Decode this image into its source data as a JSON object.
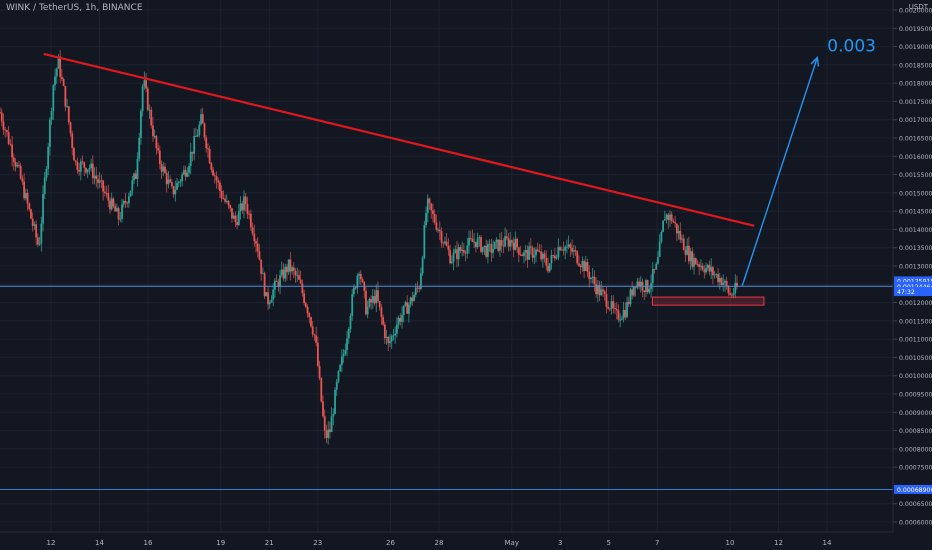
{
  "header": {
    "symbol_title": "WINK / TetherUS, 1h, BINANCE",
    "currency": "USDT"
  },
  "chart_data": {
    "type": "candlestick",
    "y_ticks": [
      "0.00200000",
      "0.00195000",
      "0.00190000",
      "0.00185000",
      "0.00180000",
      "0.00175000",
      "0.00170000",
      "0.00165000",
      "0.00160000",
      "0.00155000",
      "0.00150000",
      "0.00145000",
      "0.00140000",
      "0.00135000",
      "0.00130000",
      "0.00125000",
      "0.00120000",
      "0.00115000",
      "0.00110000",
      "0.00105000",
      "0.00100000",
      "0.00095000",
      "0.00090000",
      "0.00085000",
      "0.00080000",
      "0.00075000",
      "0.00065000",
      "0.00060000"
    ],
    "x_ticks": [
      {
        "label": "12",
        "day": 0
      },
      {
        "label": "14",
        "day": 2
      },
      {
        "label": "16",
        "day": 4
      },
      {
        "label": "19",
        "day": 7
      },
      {
        "label": "21",
        "day": 9
      },
      {
        "label": "23",
        "day": 11
      },
      {
        "label": "26",
        "day": 14
      },
      {
        "label": "28",
        "day": 16
      },
      {
        "label": "May",
        "day": 19
      },
      {
        "label": "3",
        "day": 21
      },
      {
        "label": "5",
        "day": 23
      },
      {
        "label": "7",
        "day": 25
      },
      {
        "label": "10",
        "day": 28
      },
      {
        "label": "12",
        "day": 30
      },
      {
        "label": "14",
        "day": 32
      }
    ],
    "price_labels": [
      {
        "text": "0.00125915",
        "price": 0.0012592,
        "color": "#2962ff"
      },
      {
        "text": "0.00124464",
        "price": 0.0012446,
        "color": "#2962ff"
      },
      {
        "text": "47:32",
        "price": 0.00123,
        "color": "#2962ff"
      },
      {
        "text": "0.00068900",
        "price": 0.000689,
        "color": "#2962ff"
      }
    ],
    "horizontal_lines": [
      {
        "price": 0.0012446,
        "color": "#4f8fd6"
      },
      {
        "price": 0.000689,
        "color": "#2f7fd0"
      }
    ],
    "trendline": {
      "from": {
        "day": -0.3,
        "price": 0.00188
      },
      "to": {
        "day": 29,
        "price": 0.00141
      },
      "color": "#e0181e"
    },
    "support_box": {
      "day_start": 24.8,
      "day_end": 29.4,
      "price_top": 0.001215,
      "price_bottom": 0.001193,
      "color": "#f23645"
    },
    "projection": {
      "from": {
        "day": 28.5,
        "price": 0.001245
      },
      "to": {
        "day": 31.6,
        "price": 0.00187
      },
      "color": "#2196f3",
      "label": "0.003"
    },
    "path": [
      {
        "day": -2.1,
        "price": 0.00172
      },
      {
        "day": -1.3,
        "price": 0.00155
      },
      {
        "day": -0.5,
        "price": 0.00135
      },
      {
        "day": 0.1,
        "price": 0.0018
      },
      {
        "day": 0.3,
        "price": 0.00186
      },
      {
        "day": 0.6,
        "price": 0.00175
      },
      {
        "day": 1.0,
        "price": 0.00158
      },
      {
        "day": 1.6,
        "price": 0.00157
      },
      {
        "day": 2.2,
        "price": 0.0015
      },
      {
        "day": 2.8,
        "price": 0.00143
      },
      {
        "day": 3.5,
        "price": 0.00155
      },
      {
        "day": 3.8,
        "price": 0.00181
      },
      {
        "day": 4.4,
        "price": 0.0016
      },
      {
        "day": 5.0,
        "price": 0.0015
      },
      {
        "day": 5.6,
        "price": 0.00157
      },
      {
        "day": 6.2,
        "price": 0.0017
      },
      {
        "day": 6.6,
        "price": 0.00158
      },
      {
        "day": 7.0,
        "price": 0.0015
      },
      {
        "day": 7.6,
        "price": 0.00142
      },
      {
        "day": 8.0,
        "price": 0.00148
      },
      {
        "day": 8.5,
        "price": 0.00136
      },
      {
        "day": 8.9,
        "price": 0.0012
      },
      {
        "day": 9.3,
        "price": 0.00125
      },
      {
        "day": 9.8,
        "price": 0.0013
      },
      {
        "day": 10.2,
        "price": 0.00126
      },
      {
        "day": 10.6,
        "price": 0.00118
      },
      {
        "day": 10.9,
        "price": 0.0011
      },
      {
        "day": 11.1,
        "price": 0.00096
      },
      {
        "day": 11.3,
        "price": 0.00083
      },
      {
        "day": 11.5,
        "price": 0.00085
      },
      {
        "day": 11.8,
        "price": 0.00098
      },
      {
        "day": 12.1,
        "price": 0.00107
      },
      {
        "day": 12.4,
        "price": 0.0012
      },
      {
        "day": 12.7,
        "price": 0.0013
      },
      {
        "day": 13.0,
        "price": 0.00118
      },
      {
        "day": 13.4,
        "price": 0.00122
      },
      {
        "day": 13.9,
        "price": 0.00108
      },
      {
        "day": 14.3,
        "price": 0.00115
      },
      {
        "day": 14.8,
        "price": 0.0012
      },
      {
        "day": 15.2,
        "price": 0.00125
      },
      {
        "day": 15.5,
        "price": 0.00147
      },
      {
        "day": 16.0,
        "price": 0.0014
      },
      {
        "day": 16.5,
        "price": 0.00132
      },
      {
        "day": 17.0,
        "price": 0.00135
      },
      {
        "day": 17.5,
        "price": 0.00137
      },
      {
        "day": 18.0,
        "price": 0.00134
      },
      {
        "day": 18.5,
        "price": 0.00136
      },
      {
        "day": 19.0,
        "price": 0.00137
      },
      {
        "day": 19.5,
        "price": 0.00133
      },
      {
        "day": 20.0,
        "price": 0.00134
      },
      {
        "day": 20.5,
        "price": 0.0013
      },
      {
        "day": 21.0,
        "price": 0.00136
      },
      {
        "day": 21.5,
        "price": 0.00134
      },
      {
        "day": 22.0,
        "price": 0.0013
      },
      {
        "day": 22.5,
        "price": 0.00124
      },
      {
        "day": 23.0,
        "price": 0.0012
      },
      {
        "day": 23.3,
        "price": 0.00116
      },
      {
        "day": 23.7,
        "price": 0.00118
      },
      {
        "day": 24.1,
        "price": 0.00126
      },
      {
        "day": 24.6,
        "price": 0.00124
      },
      {
        "day": 25.0,
        "price": 0.0013
      },
      {
        "day": 25.3,
        "price": 0.00144
      },
      {
        "day": 25.6,
        "price": 0.00143
      },
      {
        "day": 26.0,
        "price": 0.00137
      },
      {
        "day": 26.4,
        "price": 0.00132
      },
      {
        "day": 26.9,
        "price": 0.0013
      },
      {
        "day": 27.3,
        "price": 0.00128
      },
      {
        "day": 27.7,
        "price": 0.00126
      },
      {
        "day": 28.0,
        "price": 0.00122
      },
      {
        "day": 28.3,
        "price": 0.00124
      }
    ]
  },
  "colors": {
    "background": "#131722",
    "grid": "#1e2231",
    "axis_text": "#b2b5be",
    "up": "#26a69a",
    "down": "#ef5350",
    "up_wick": "#2f9c8b",
    "down_wick": "#c0504d"
  }
}
